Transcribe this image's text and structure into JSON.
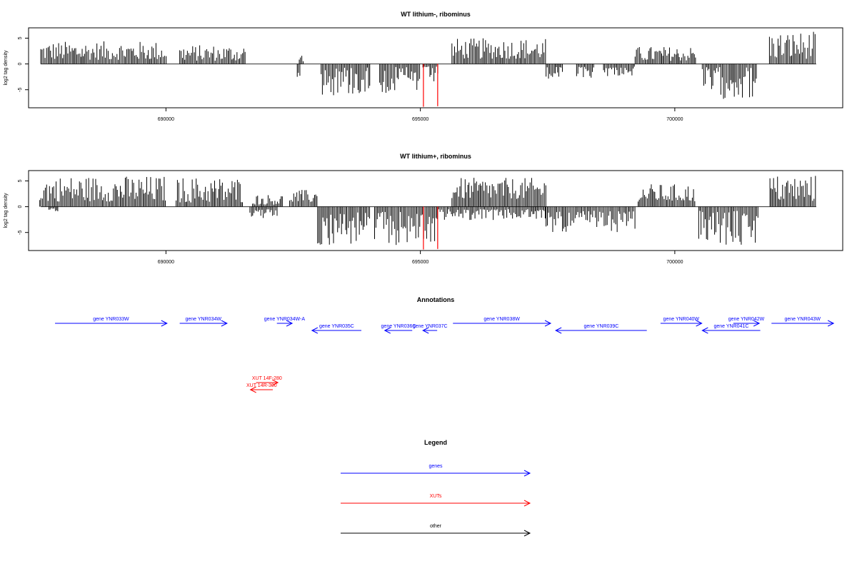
{
  "chart_data": [
    {
      "type": "bar",
      "title": "WT lithium-, ribominus",
      "ylabel": "log2 tag density",
      "xlim": [
        687300,
        703300
      ],
      "ylim": [
        -8.5,
        7.0
      ],
      "yticks": [
        -5,
        0,
        5
      ],
      "xticks": [
        690000,
        695000,
        700000
      ],
      "xticklabels": [
        "690000",
        "695000",
        "700000"
      ],
      "series": [
        {
          "sign": 1,
          "regions": [
            {
              "from": 687540,
              "to": 690020,
              "min": 0.8,
              "max": 4.4
            },
            {
              "from": 690270,
              "to": 691580,
              "min": 0.6,
              "max": 3.7
            },
            {
              "from": 692620,
              "to": 692700,
              "min": 0.5,
              "max": 2.0
            },
            {
              "from": 695620,
              "to": 697460,
              "min": 1.0,
              "max": 5.0
            },
            {
              "from": 699220,
              "to": 700420,
              "min": 0.6,
              "max": 3.4
            },
            {
              "from": 701860,
              "to": 702770,
              "min": 1.0,
              "max": 6.3
            }
          ]
        },
        {
          "sign": -1,
          "regions": [
            {
              "from": 692580,
              "to": 692640,
              "min": 0.5,
              "max": 2.6
            },
            {
              "from": 693050,
              "to": 694020,
              "min": 0.5,
              "max": 6.2
            },
            {
              "from": 694200,
              "to": 695000,
              "min": 0.6,
              "max": 5.8
            },
            {
              "from": 695050,
              "to": 695350,
              "min": 0.5,
              "max": 3.8
            },
            {
              "from": 697470,
              "to": 697800,
              "min": 0.6,
              "max": 3.4
            },
            {
              "from": 698070,
              "to": 698420,
              "min": 0.5,
              "max": 2.8
            },
            {
              "from": 698600,
              "to": 699220,
              "min": 0.5,
              "max": 2.4
            },
            {
              "from": 700540,
              "to": 701620,
              "min": 0.6,
              "max": 6.8
            }
          ]
        }
      ],
      "highlight": [
        {
          "x": 695060,
          "value": -8.3
        },
        {
          "x": 695340,
          "value": -8.2
        }
      ]
    },
    {
      "type": "bar",
      "title": "WT lithium+, ribominus",
      "ylabel": "log2 tag density",
      "xlim": [
        687300,
        703300
      ],
      "ylim": [
        -8.5,
        7.0
      ],
      "yticks": [
        -5,
        0,
        5
      ],
      "xticks": [
        690000,
        695000,
        700000
      ],
      "xticklabels": [
        "690000",
        "695000",
        "700000"
      ],
      "series": [
        {
          "sign": 1,
          "regions": [
            {
              "from": 687520,
              "to": 689990,
              "min": 1.0,
              "max": 6.0
            },
            {
              "from": 690200,
              "to": 691530,
              "min": 0.8,
              "max": 5.8
            },
            {
              "from": 691700,
              "to": 692300,
              "min": 0.4,
              "max": 2.4
            },
            {
              "from": 692430,
              "to": 692980,
              "min": 0.8,
              "max": 3.3
            },
            {
              "from": 695620,
              "to": 697480,
              "min": 1.5,
              "max": 5.6
            },
            {
              "from": 699280,
              "to": 700410,
              "min": 1.0,
              "max": 4.4
            },
            {
              "from": 701870,
              "to": 702780,
              "min": 1.0,
              "max": 6.2
            }
          ]
        },
        {
          "sign": -1,
          "regions": [
            {
              "from": 687700,
              "to": 687880,
              "min": 0.3,
              "max": 1.0
            },
            {
              "from": 691650,
              "to": 692200,
              "min": 0.5,
              "max": 2.4
            },
            {
              "from": 692980,
              "to": 694020,
              "min": 1.0,
              "max": 7.6
            },
            {
              "from": 694100,
              "to": 695330,
              "min": 1.0,
              "max": 7.6
            },
            {
              "from": 695330,
              "to": 697470,
              "min": 0.5,
              "max": 2.6
            },
            {
              "from": 697470,
              "to": 699220,
              "min": 0.8,
              "max": 5.0
            },
            {
              "from": 700470,
              "to": 701640,
              "min": 0.8,
              "max": 7.8
            }
          ]
        }
      ],
      "highlight": [
        {
          "x": 695060,
          "value": -8.3
        },
        {
          "x": 695340,
          "value": -8.2
        }
      ]
    }
  ],
  "annotations": {
    "title": "Annotations",
    "features": [
      {
        "label": "gene YNR033W",
        "start": 687820,
        "end": 690020,
        "dir": 1,
        "row": 0,
        "kind": "genes"
      },
      {
        "label": "gene YNR034W",
        "start": 690270,
        "end": 691200,
        "dir": 1,
        "row": 0,
        "kind": "genes"
      },
      {
        "label": "gene YNR034W-A",
        "start": 692180,
        "end": 692480,
        "dir": 1,
        "row": 0,
        "kind": "genes"
      },
      {
        "label": "gene YNR035C",
        "start": 692870,
        "end": 693840,
        "dir": -1,
        "row": 1,
        "kind": "genes"
      },
      {
        "label": "gene YNR036C",
        "start": 694300,
        "end": 694840,
        "dir": -1,
        "row": 1,
        "kind": "genes"
      },
      {
        "label": "gene YNR037C",
        "start": 695050,
        "end": 695330,
        "dir": -1,
        "row": 1,
        "kind": "genes"
      },
      {
        "label": "gene YNR038W",
        "start": 695640,
        "end": 697560,
        "dir": 1,
        "row": 0,
        "kind": "genes"
      },
      {
        "label": "gene YNR039C",
        "start": 697660,
        "end": 699450,
        "dir": -1,
        "row": 1,
        "kind": "genes"
      },
      {
        "label": "gene YNR040W",
        "start": 699720,
        "end": 700530,
        "dir": 1,
        "row": 0,
        "kind": "genes"
      },
      {
        "label": "gene YNR041C",
        "start": 700540,
        "end": 701680,
        "dir": -1,
        "row": 1,
        "kind": "genes"
      },
      {
        "label": "gene YNR042W",
        "start": 701150,
        "end": 701660,
        "dir": 1,
        "row": 0,
        "kind": "genes"
      },
      {
        "label": "gene YNR043W",
        "start": 701900,
        "end": 703120,
        "dir": 1,
        "row": 0,
        "kind": "genes"
      },
      {
        "label": "XUT 14F-280",
        "start": 691770,
        "end": 692200,
        "dir": 1,
        "row": 2,
        "kind": "XUTs"
      },
      {
        "label": "XUT 14R-300",
        "start": 691660,
        "end": 692100,
        "dir": -1,
        "row": 3,
        "kind": "XUTs"
      }
    ]
  },
  "legend": {
    "title": "Legend",
    "items": [
      {
        "label": "genes",
        "color": "#0000ff"
      },
      {
        "label": "XUTs",
        "color": "#ff0000"
      },
      {
        "label": "other",
        "color": "#000000"
      }
    ]
  },
  "colors": {
    "bars": "#000000",
    "highlight": "#ff0000",
    "genes": "#0000ff",
    "XUTs": "#ff0000",
    "other": "#000000"
  }
}
